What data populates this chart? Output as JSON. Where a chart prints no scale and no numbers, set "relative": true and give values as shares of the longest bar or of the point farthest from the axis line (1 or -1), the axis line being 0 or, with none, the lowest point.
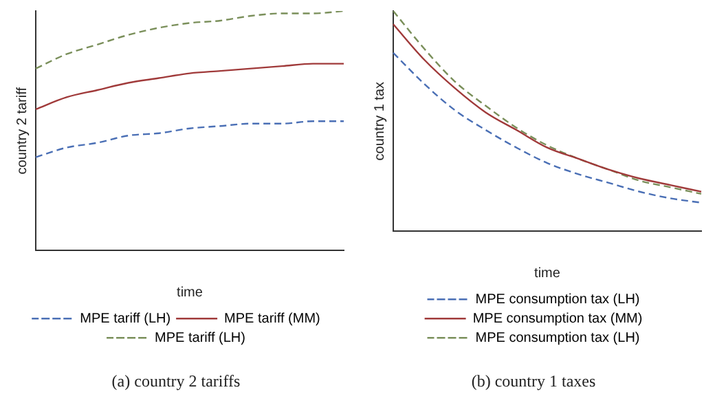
{
  "chart_data": [
    {
      "type": "line",
      "title": "(a) country 2 tariffs",
      "xlabel": "time",
      "ylabel": "country 2 tariff",
      "relative": true,
      "grid": false,
      "legend": "bottom",
      "marker": "none",
      "categories": [
        null,
        null,
        null,
        null,
        null,
        null,
        null,
        null,
        null,
        null,
        null
      ],
      "series": [
        {
          "name": "MPE tariff (LH)",
          "color": "#4a6fb5",
          "line_style": "dashed",
          "values": [
            0.39,
            0.43,
            0.45,
            0.48,
            0.49,
            0.51,
            0.52,
            0.53,
            0.53,
            0.54,
            0.54
          ]
        },
        {
          "name": "MPE tariff (MM)",
          "color": "#a03a3a",
          "line_style": "solid",
          "values": [
            0.59,
            0.64,
            0.67,
            0.7,
            0.72,
            0.74,
            0.75,
            0.76,
            0.77,
            0.78,
            0.78
          ]
        },
        {
          "name": "MPE tariff (LH)",
          "color": "#7a8f5a",
          "line_style": "dashed",
          "values": [
            0.76,
            0.82,
            0.86,
            0.9,
            0.93,
            0.95,
            0.96,
            0.98,
            0.99,
            0.99,
            1.0
          ]
        }
      ]
    },
    {
      "type": "line",
      "title": "(b) country 1 taxes",
      "xlabel": "time",
      "ylabel": "country 1 tax",
      "relative": true,
      "grid": false,
      "legend": "bottom",
      "marker": "none",
      "categories": [
        null,
        null,
        null,
        null,
        null,
        null,
        null,
        null,
        null,
        null,
        null
      ],
      "series": [
        {
          "name": "MPE consumption tax (LH)",
          "color": "#4a6fb5",
          "line_style": "dashed",
          "values": [
            0.81,
            0.67,
            0.55,
            0.46,
            0.38,
            0.31,
            0.26,
            0.22,
            0.18,
            0.15,
            0.13
          ]
        },
        {
          "name": "MPE consumption tax (MM)",
          "color": "#a03a3a",
          "line_style": "solid",
          "values": [
            0.94,
            0.78,
            0.65,
            0.54,
            0.46,
            0.38,
            0.33,
            0.28,
            0.24,
            0.21,
            0.18
          ]
        },
        {
          "name": "MPE consumption tax (LH)",
          "color": "#7a8f5a",
          "line_style": "dashed",
          "values": [
            1.0,
            0.83,
            0.68,
            0.57,
            0.47,
            0.39,
            0.33,
            0.28,
            0.23,
            0.2,
            0.17
          ]
        }
      ]
    }
  ]
}
